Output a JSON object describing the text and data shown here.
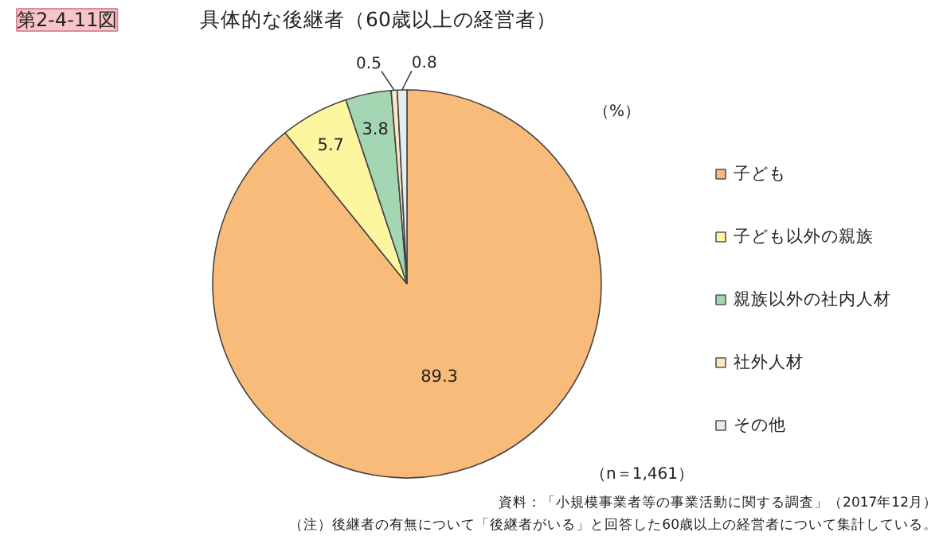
{
  "chart_data": {
    "type": "pie",
    "subtitle": "第2-4-11図",
    "title": "具体的な後継者（60歳以上の経営者）",
    "categories": [
      "子ども",
      "子ども以外の親族",
      "親族以外の社内人材",
      "社外人材",
      "その他"
    ],
    "values": [
      89.3,
      5.7,
      3.8,
      0.5,
      0.8
    ],
    "colors": [
      "#f9bb7a",
      "#fdf6a0",
      "#a5d6b4",
      "#fde6c6",
      "#e3eeee"
    ],
    "data_labels": true,
    "legend": "right",
    "annotations": [
      "（%）",
      "（n＝1,461）",
      "資料：「小規模事業者等の事業活動に関する調査」（2017年12月）",
      "（注）後継者の有無について「後継者がいる」と回答した60歳以上の経営者について集計している。"
    ]
  }
}
